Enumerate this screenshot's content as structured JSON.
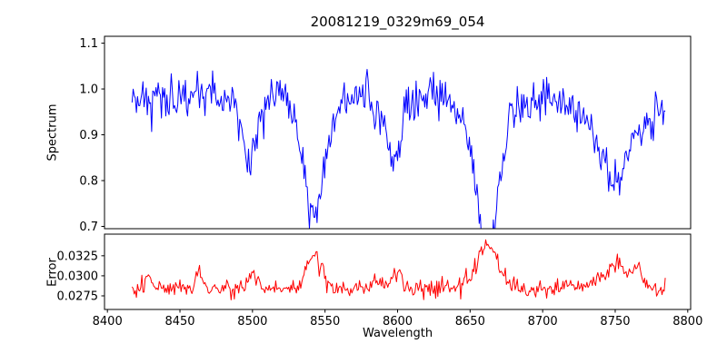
{
  "chart_data": {
    "type": "line",
    "title": "20081219_0329m69_054",
    "xlabel": "Wavelength",
    "xlim": [
      8398,
      8802
    ],
    "x_ticks": [
      8400,
      8450,
      8500,
      8550,
      8600,
      8650,
      8700,
      8750,
      8800
    ],
    "x_start": 8417,
    "x_end": 8785,
    "x_step": 0.75,
    "noise_seed": 42,
    "grid": false,
    "legend": "none",
    "panels": [
      {
        "name": "spectrum",
        "ylabel": "Spectrum",
        "ylim": [
          0.695,
          1.115
        ],
        "y_ticks": [
          0.7,
          0.8,
          0.9,
          1.0,
          1.1
        ],
        "tick_decimals": 1,
        "color": "#0000ff",
        "continuum": 0.985,
        "wiggle_amp": 0.008,
        "wiggle_period": 55,
        "noise_sigma": 0.023,
        "absorption_lines": [
          {
            "center": 8498,
            "depth": 0.13,
            "sigma": 5
          },
          {
            "center": 8542,
            "depth": 0.22,
            "sigma": 6
          },
          {
            "center": 8542,
            "depth": 0.05,
            "sigma": 14
          },
          {
            "center": 8586,
            "depth": 0.06,
            "sigma": 3
          },
          {
            "center": 8598,
            "depth": 0.15,
            "sigma": 4
          },
          {
            "center": 8662,
            "depth": 0.27,
            "sigma": 7
          },
          {
            "center": 8662,
            "depth": 0.06,
            "sigma": 18
          },
          {
            "center": 8750,
            "depth": 0.14,
            "sigma": 10
          },
          {
            "center": 8745,
            "depth": 0.05,
            "sigma": 20
          }
        ],
        "envelope_points": {
          "x": [
            8420,
            8440,
            8460,
            8480,
            8500,
            8520,
            8540,
            8560,
            8580,
            8600,
            8620,
            8640,
            8660,
            8680,
            8700,
            8720,
            8740,
            8760,
            8780
          ],
          "y": [
            0.98,
            0.99,
            0.99,
            0.98,
            0.88,
            0.97,
            0.76,
            0.95,
            0.97,
            0.84,
            0.98,
            0.99,
            0.71,
            0.93,
            0.98,
            0.97,
            0.88,
            0.93,
            0.97
          ]
        }
      },
      {
        "name": "error",
        "ylabel": "Error",
        "ylim": [
          0.0258,
          0.0352
        ],
        "y_ticks": [
          0.0275,
          0.03,
          0.0325
        ],
        "tick_decimals": 4,
        "color": "#ff0000",
        "baseline": 0.0284,
        "noise_sigma": 0.00055,
        "bumps": [
          {
            "center": 8428,
            "amp": 0.0022,
            "sigma": 2
          },
          {
            "center": 8463,
            "amp": 0.0025,
            "sigma": 2
          },
          {
            "center": 8500,
            "amp": 0.0018,
            "sigma": 4
          },
          {
            "center": 8542,
            "amp": 0.0045,
            "sigma": 5
          },
          {
            "center": 8586,
            "amp": 0.0012,
            "sigma": 3
          },
          {
            "center": 8598,
            "amp": 0.0018,
            "sigma": 4
          },
          {
            "center": 8662,
            "amp": 0.0052,
            "sigma": 8
          },
          {
            "center": 8745,
            "amp": 0.0015,
            "sigma": 12
          },
          {
            "center": 8752,
            "amp": 0.002,
            "sigma": 4
          },
          {
            "center": 8765,
            "amp": 0.0028,
            "sigma": 3
          }
        ],
        "envelope_points": {
          "x": [
            8420,
            8440,
            8460,
            8480,
            8500,
            8520,
            8540,
            8560,
            8580,
            8600,
            8620,
            8640,
            8660,
            8680,
            8700,
            8720,
            8740,
            8760,
            8780
          ],
          "y": [
            0.0285,
            0.0287,
            0.029,
            0.0286,
            0.03,
            0.0287,
            0.032,
            0.0288,
            0.0287,
            0.0298,
            0.0286,
            0.0287,
            0.033,
            0.029,
            0.0285,
            0.0284,
            0.0295,
            0.0305,
            0.0282
          ]
        }
      }
    ]
  }
}
